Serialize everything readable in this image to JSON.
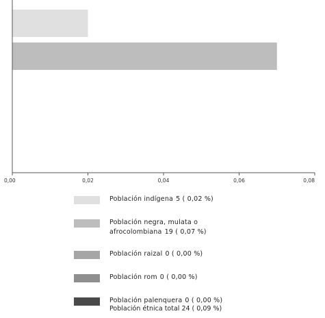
{
  "chart_data": {
    "type": "bar",
    "orientation": "horizontal",
    "xlim": [
      0,
      0.08
    ],
    "x_tick_labels": [
      "0,00",
      "0,02",
      "0,04",
      "0,06",
      "0,08"
    ],
    "grid": false,
    "legend_position": "bottom",
    "bars": [
      {
        "label": "Población indígena",
        "value": 0.02,
        "count_text": "5 ( 0,02 %)",
        "color": "#e0e0e0"
      },
      {
        "label": "Población negra, mulata o afrocolombiana",
        "value": 0.07,
        "count_text": "19 ( 0,07 %)",
        "color": "#bdbdbd"
      },
      {
        "label": "Población raizal",
        "value": 0.0,
        "count_text": "0 ( 0,00 %)",
        "color": "#a6a6a6"
      },
      {
        "label": "Población rom",
        "value": 0.0,
        "count_text": "0 ( 0,00 %)",
        "color": "#8f8f8f"
      },
      {
        "label": "Población palenquera",
        "value": 0.0,
        "count_text": "0 ( 0,00 %)",
        "color": "#4a4a4a"
      }
    ],
    "total_text": "Población étnica total  24 ( 0,09 %)"
  },
  "legend": {
    "items": [
      {
        "line1": "Población indígena",
        "line2": "",
        "value": "5 ( 0,02 %)"
      },
      {
        "line1": "Población negra, mulata o",
        "line2": "afrocolombiana",
        "value": "19 ( 0,07 %)"
      },
      {
        "line1": "Población raizal",
        "line2": "",
        "value": "0 ( 0,00 %)"
      },
      {
        "line1": "Población rom",
        "line2": "",
        "value": "0 ( 0,00 %)"
      },
      {
        "line1": "Población palenquera",
        "line2": "",
        "value": "0 ( 0,00 %)"
      }
    ],
    "total": "Población étnica total  24 ( 0,09 %)"
  }
}
